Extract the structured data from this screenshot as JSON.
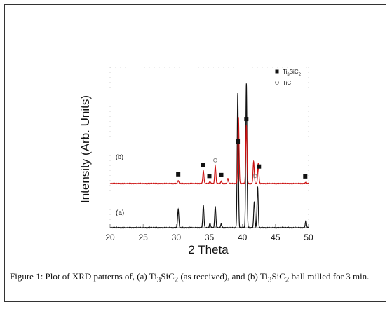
{
  "chart_data": {
    "type": "line",
    "xlabel": "2 Theta",
    "ylabel": "Intensity (Arb. Units)",
    "xlim": [
      20,
      50
    ],
    "xticks": [
      20,
      25,
      30,
      35,
      40,
      45,
      50
    ],
    "y_tick_labels_shown": false,
    "grid": false,
    "legend_placement": "top-right",
    "legend": [
      {
        "marker": "filled-square",
        "label": "Ti3SiC2",
        "label_main": "Ti",
        "sub1": "3",
        "mid": "Si",
        "sub2": "C",
        "sub3": "2"
      },
      {
        "marker": "open-circle",
        "label": "TiC"
      }
    ],
    "series": [
      {
        "label": "(a)",
        "color": "#111111",
        "baseline": 0,
        "peaks": [
          {
            "x": 30.3,
            "y": 25
          },
          {
            "x": 34.1,
            "y": 30
          },
          {
            "x": 35.1,
            "y": 6
          },
          {
            "x": 35.9,
            "y": 29
          },
          {
            "x": 36.8,
            "y": 5
          },
          {
            "x": 39.3,
            "y": 183
          },
          {
            "x": 40.6,
            "y": 196
          },
          {
            "x": 41.8,
            "y": 36
          },
          {
            "x": 42.3,
            "y": 56
          },
          {
            "x": 49.6,
            "y": 10
          }
        ]
      },
      {
        "label": "(b)",
        "color": "#cc1111",
        "baseline": 60,
        "peaks": [
          {
            "x": 30.3,
            "y": 4
          },
          {
            "x": 34.1,
            "y": 17
          },
          {
            "x": 35.1,
            "y": 3
          },
          {
            "x": 35.9,
            "y": 24
          },
          {
            "x": 36.8,
            "y": 3
          },
          {
            "x": 37.8,
            "y": 7
          },
          {
            "x": 39.4,
            "y": 90
          },
          {
            "x": 40.6,
            "y": 79
          },
          {
            "x": 41.7,
            "y": 30
          },
          {
            "x": 42.4,
            "y": 27
          },
          {
            "x": 49.6,
            "y": 2
          }
        ]
      }
    ],
    "annotations": {
      "ti3sic2_markers_x": [
        30.3,
        34.1,
        35.0,
        36.8,
        39.3,
        40.6,
        42.5,
        49.5
      ],
      "tic_markers_x": [
        35.9,
        41.9
      ]
    }
  },
  "caption": {
    "text": "Figure 1: Plot of XRD patterns of, (a) Ti3SiC2 (as received), and (b) Ti3SiC2 ball milled for 3 min.",
    "part1": "Figure 1: Plot of XRD patterns of, (a) Ti",
    "part2": "SiC",
    "part3": " (as received), and (b) Ti",
    "part4": "SiC",
    "part5": " ball milled for 3 min.",
    "sub_3": "3",
    "sub_2": "2"
  }
}
